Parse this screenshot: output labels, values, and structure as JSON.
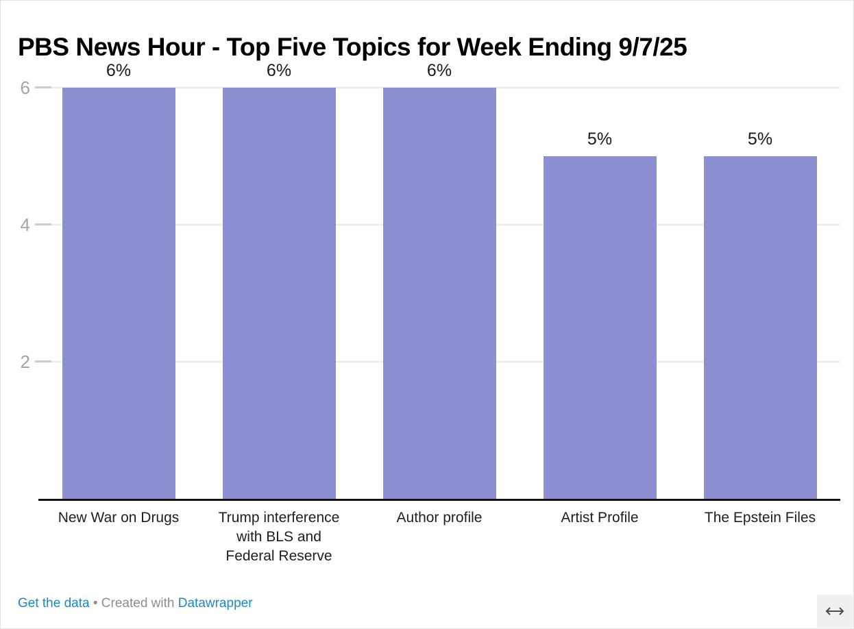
{
  "title": "PBS News Hour - Top Five Topics for Week Ending 9/7/25",
  "chart_data": {
    "type": "bar",
    "title": "PBS News Hour - Top Five Topics for Week Ending 9/7/25",
    "categories": [
      "New War on Drugs",
      "Trump interference with BLS and Federal Reserve",
      "Author profile",
      "Artist Profile",
      "The Epstein Files"
    ],
    "category_display_lines": [
      [
        "New War on Drugs"
      ],
      [
        "Trump interference",
        "with BLS and",
        "Federal Reserve"
      ],
      [
        "Author profile"
      ],
      [
        "Artist Profile"
      ],
      [
        "The Epstein Files"
      ]
    ],
    "values": [
      6,
      6,
      6,
      5,
      5
    ],
    "value_labels": [
      "6%",
      "6%",
      "6%",
      "5%",
      "5%"
    ],
    "xlabel": "",
    "ylabel": "",
    "ylim": [
      0,
      6
    ],
    "yticks": [
      2,
      4,
      6
    ],
    "ytick_labels": [
      "2",
      "4",
      "6"
    ],
    "grid": "horizontal",
    "legend": "none",
    "bar_color": "#8C90D2"
  },
  "footer": {
    "get_data_label": "Get the data",
    "separator": "•",
    "created_with_text": "Created with",
    "datawrapper_label": "Datawrapper"
  },
  "icons": {
    "resize": "left-right-arrow"
  },
  "colors": {
    "bar": "#8C90D2",
    "axis_line": "#141414",
    "gridline": "#eaeaea",
    "tick_mark": "#cccccc",
    "ytick_text": "#a4a4a4",
    "value_text": "#1a1a1a",
    "category_text": "#1d1d1d",
    "link_blue": "#1d87c6",
    "footer_gray": "#8d8d8d",
    "button_bg": "#f0f0f0"
  }
}
